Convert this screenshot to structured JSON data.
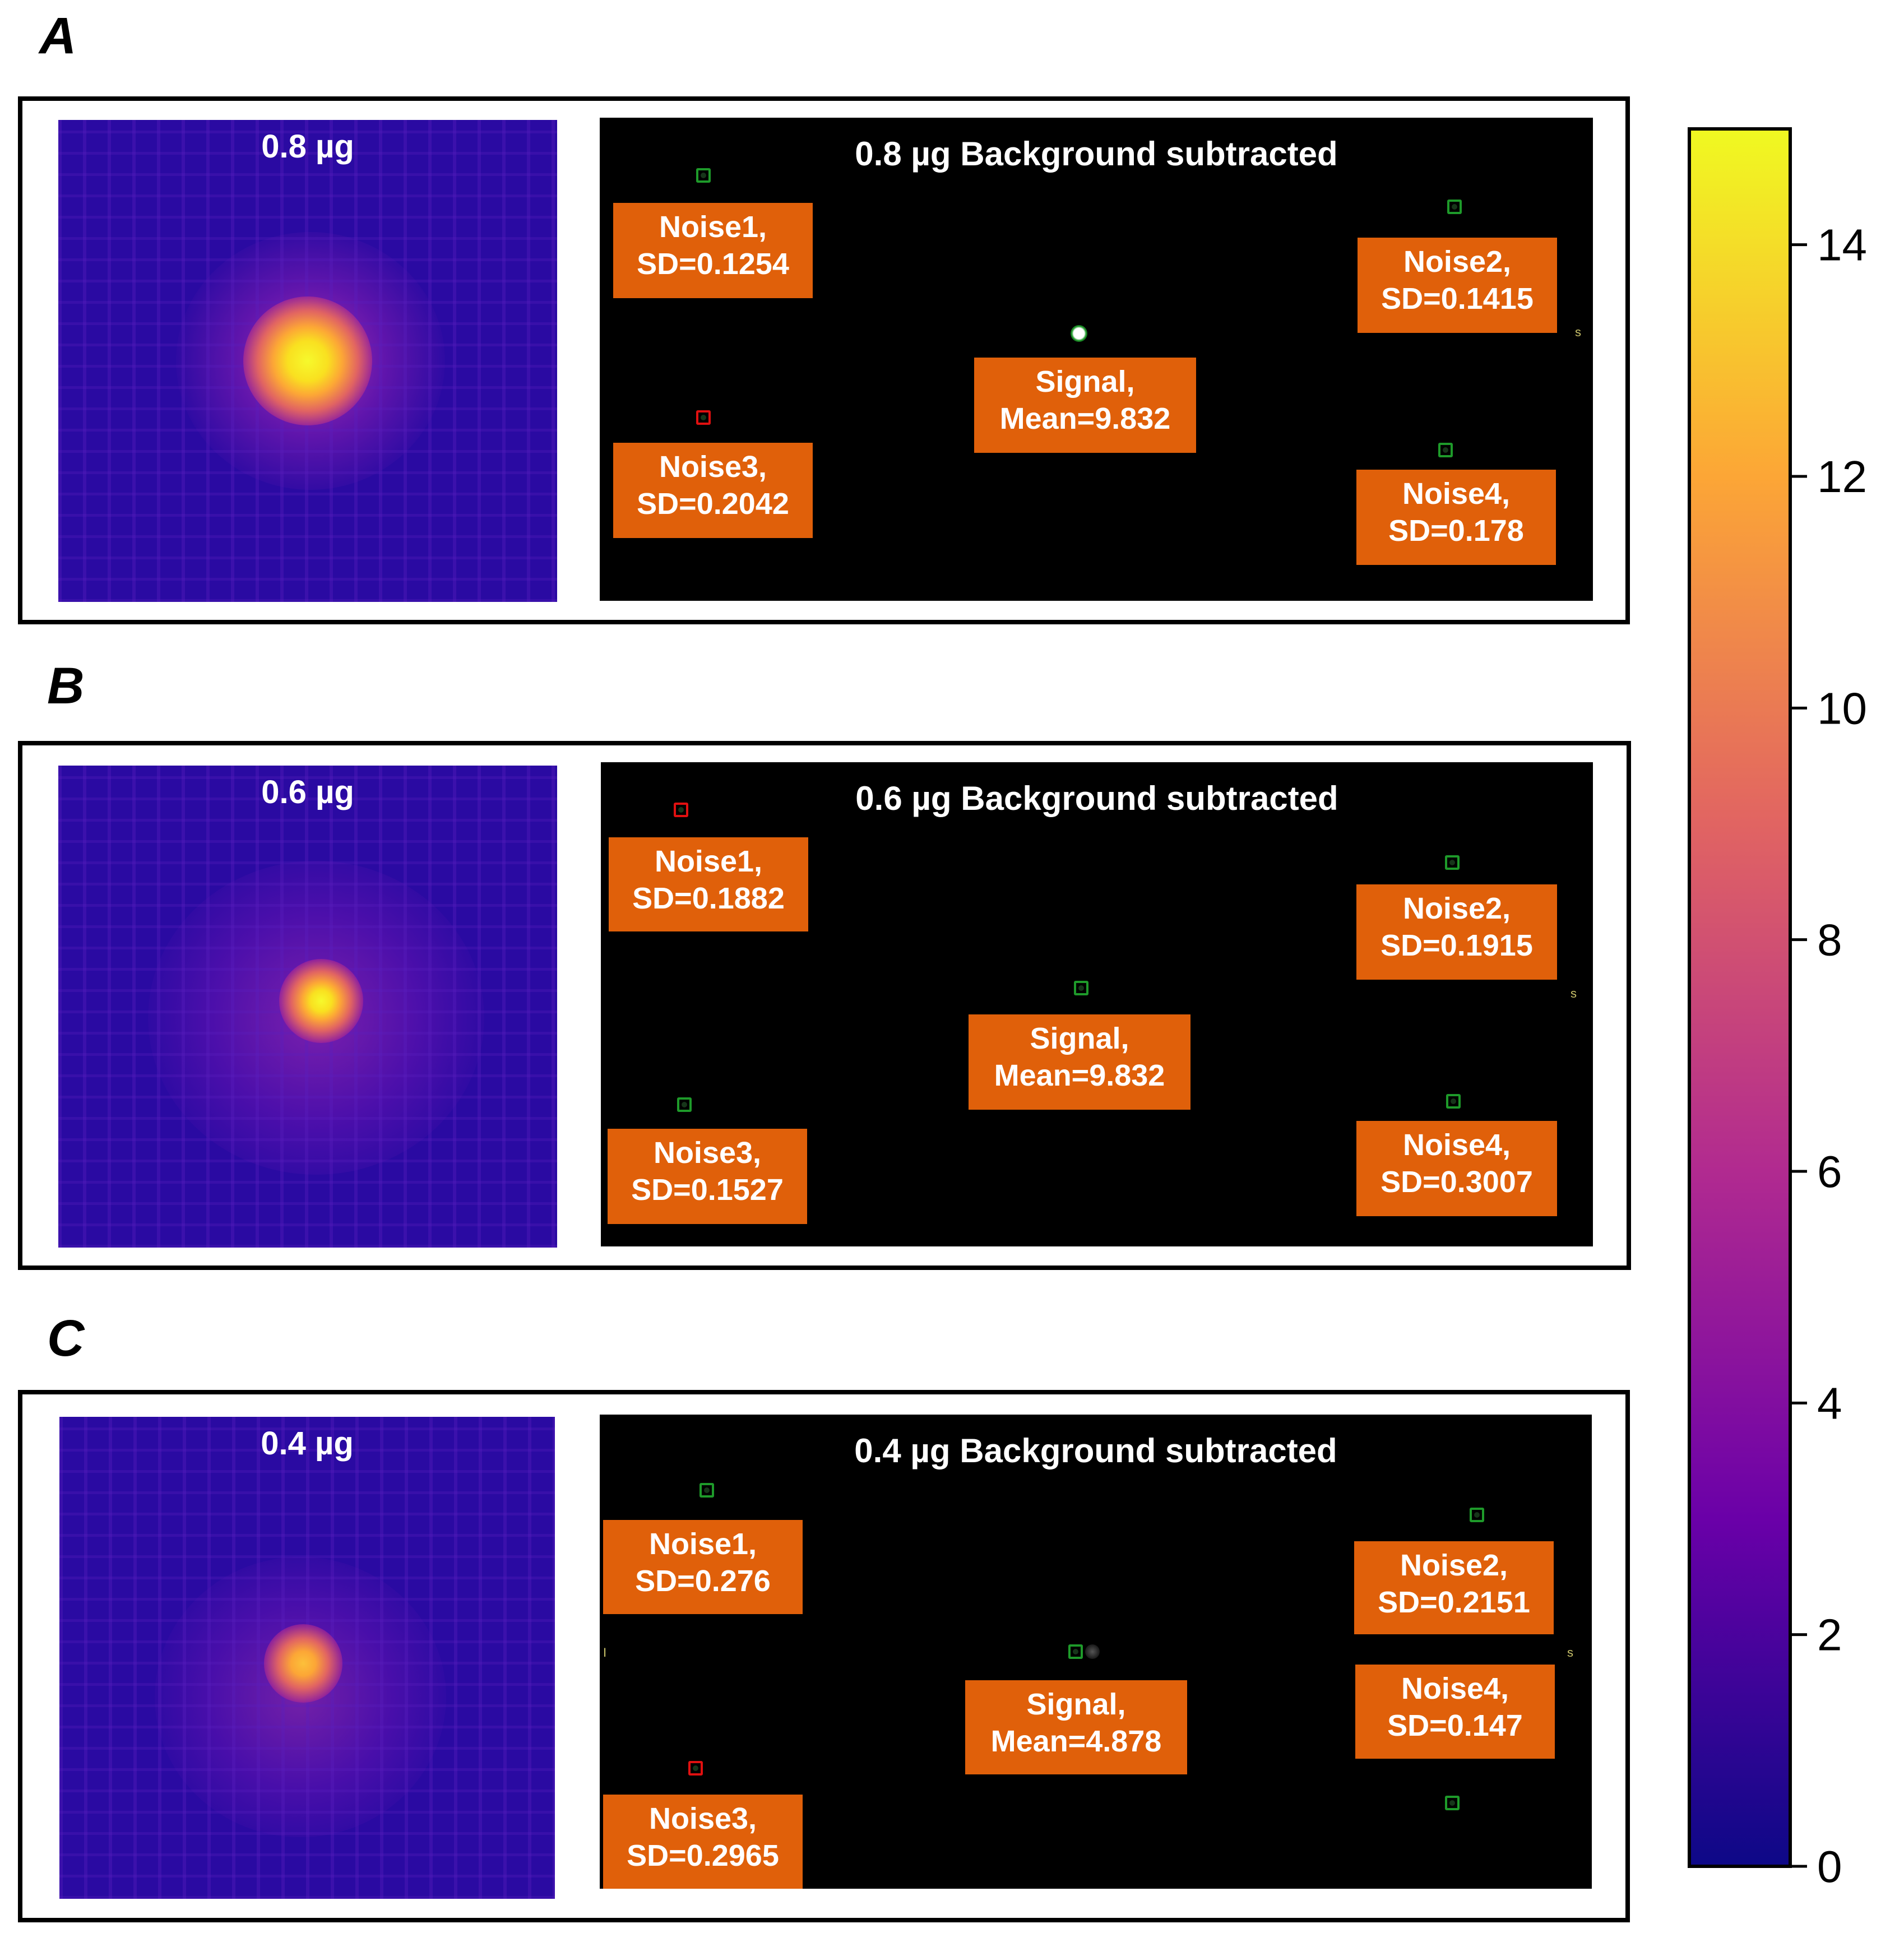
{
  "panels": [
    {
      "letter": "A",
      "heatmap_title": "0.8 µg",
      "subtracted_title": "0.8 µg Background subtracted",
      "noise1": {
        "line1": "Noise1,",
        "line2": "SD=0.1254"
      },
      "noise2": {
        "line1": "Noise2,",
        "line2": "SD=0.1415"
      },
      "noise3": {
        "line1": "Noise3,",
        "line2": "SD=0.2042"
      },
      "noise4": {
        "line1": "Noise4,",
        "line2": "SD=0.178"
      },
      "signal": {
        "line1": "Signal,",
        "line2": "Mean=9.832"
      },
      "edge_mark": "s"
    },
    {
      "letter": "B",
      "heatmap_title": "0.6 µg",
      "subtracted_title": "0.6 µg Background subtracted",
      "noise1": {
        "line1": "Noise1,",
        "line2": "SD=0.1882"
      },
      "noise2": {
        "line1": "Noise2,",
        "line2": "SD=0.1915"
      },
      "noise3": {
        "line1": "Noise3,",
        "line2": "SD=0.1527"
      },
      "noise4": {
        "line1": "Noise4,",
        "line2": "SD=0.3007"
      },
      "signal": {
        "line1": "Signal,",
        "line2": "Mean=9.832"
      },
      "edge_mark": "s"
    },
    {
      "letter": "C",
      "heatmap_title": "0.4 µg",
      "subtracted_title": "0.4 µg Background subtracted",
      "noise1": {
        "line1": "Noise1,",
        "line2": "SD=0.276"
      },
      "noise2": {
        "line1": "Noise2,",
        "line2": "SD=0.2151"
      },
      "noise3": {
        "line1": "Noise3,",
        "line2": "SD=0.2965"
      },
      "noise4": {
        "line1": "Noise4,",
        "line2": "SD=0.147"
      },
      "signal": {
        "line1": "Signal,",
        "line2": "Mean=4.878"
      },
      "edge_mark": "s",
      "edge_mark_left": "I"
    }
  ],
  "colorbar": {
    "min": 0,
    "max": 15,
    "ticks": [
      "0",
      "2",
      "4",
      "6",
      "8",
      "10",
      "12",
      "14"
    ],
    "colormap": [
      "#0d0887",
      "#6a00a8",
      "#b12a90",
      "#e16462",
      "#fca636",
      "#f0f921"
    ]
  },
  "colors": {
    "label_fill": "#e0600a",
    "roi_red": "#e01010",
    "roi_green": "#1e9a2a"
  }
}
